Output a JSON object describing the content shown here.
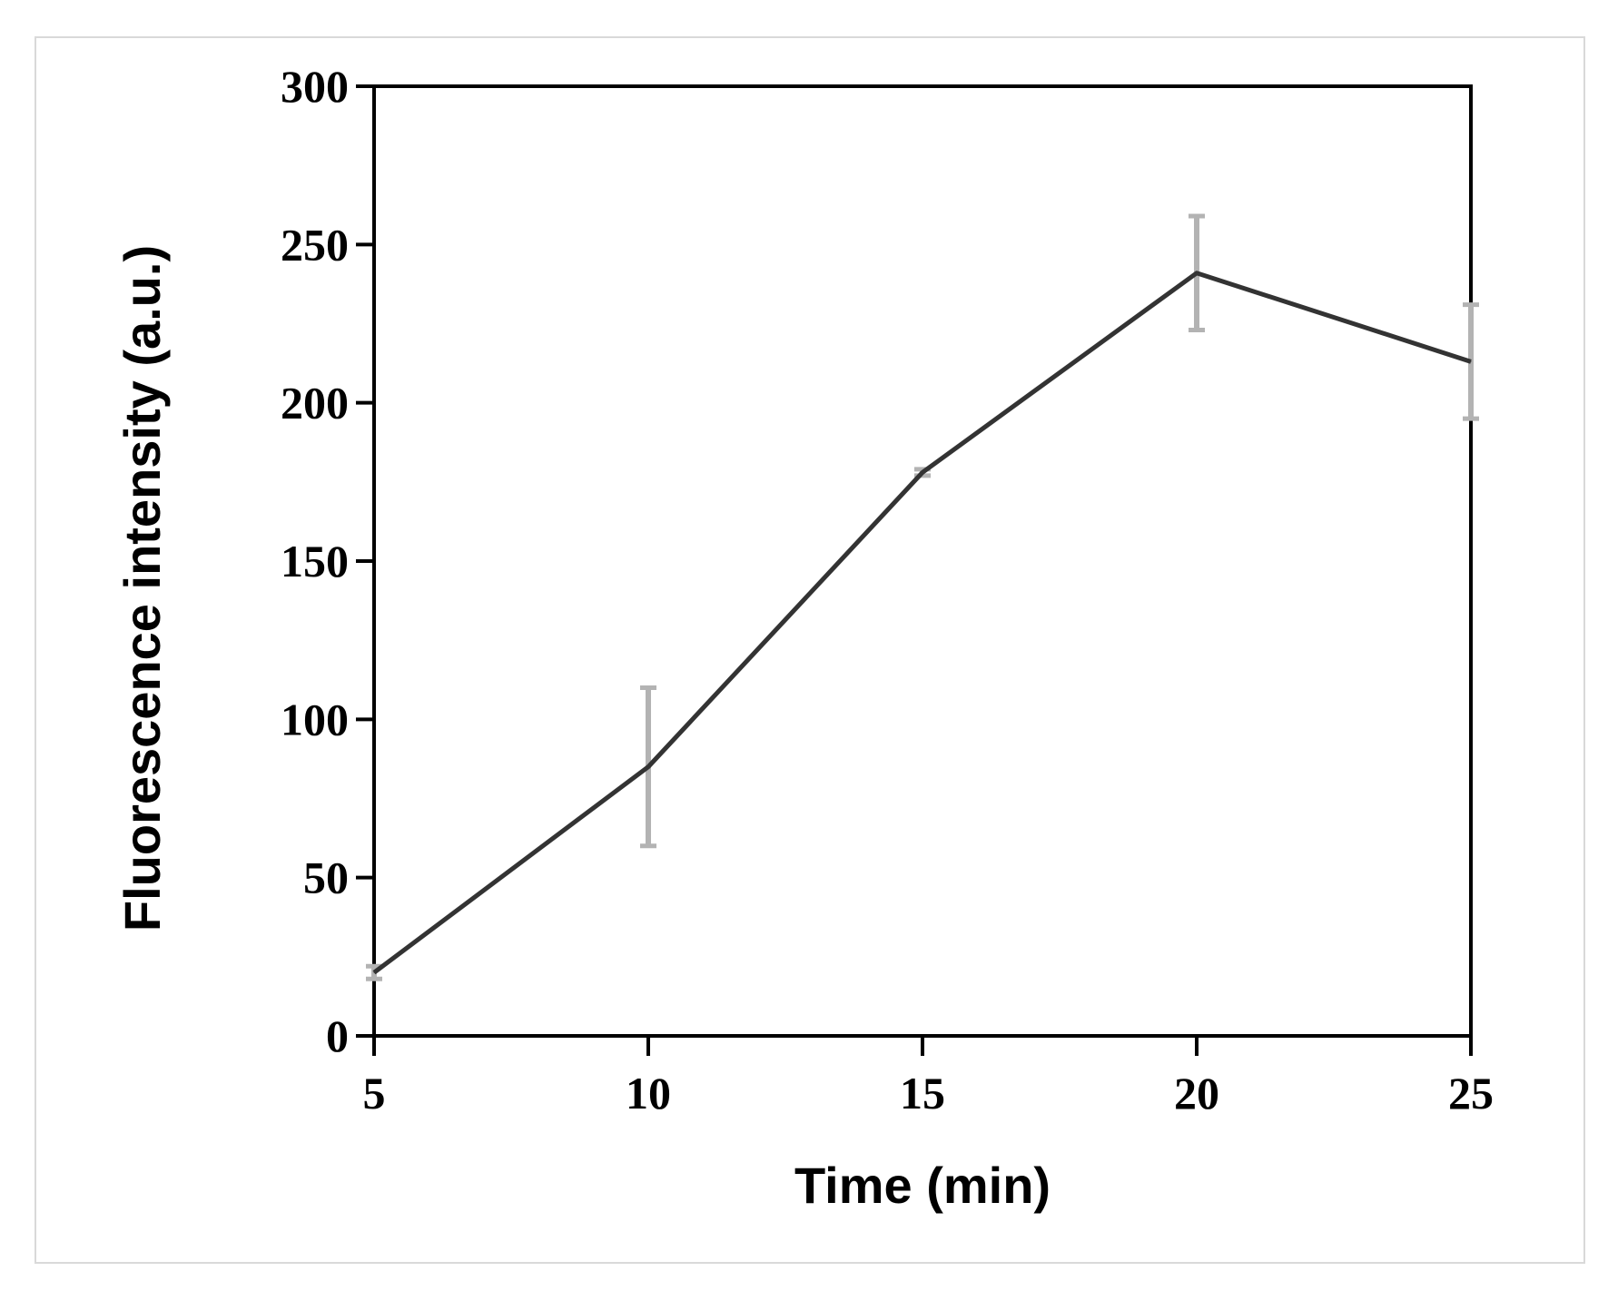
{
  "chart_data": {
    "type": "line",
    "title": "",
    "xlabel": "Time (min)",
    "ylabel": "Fluorescence intensity (a.u.)",
    "xlim": [
      5,
      25
    ],
    "ylim": [
      0,
      300
    ],
    "x_ticks": [
      "5",
      "10",
      "15",
      "20",
      "25"
    ],
    "y_ticks": [
      "0",
      "50",
      "100",
      "150",
      "200",
      "250",
      "300"
    ],
    "grid": false,
    "legend": "none",
    "series": [
      {
        "x": [
          5,
          10,
          15,
          20,
          25
        ],
        "values": [
          20,
          85,
          178,
          241,
          213
        ],
        "error": [
          2,
          25,
          1,
          18,
          18
        ]
      }
    ],
    "colors": {
      "line": "#333333",
      "error_bar": "#b3b3b3",
      "axis": "#000000",
      "frame": "#d9d9d9"
    }
  }
}
